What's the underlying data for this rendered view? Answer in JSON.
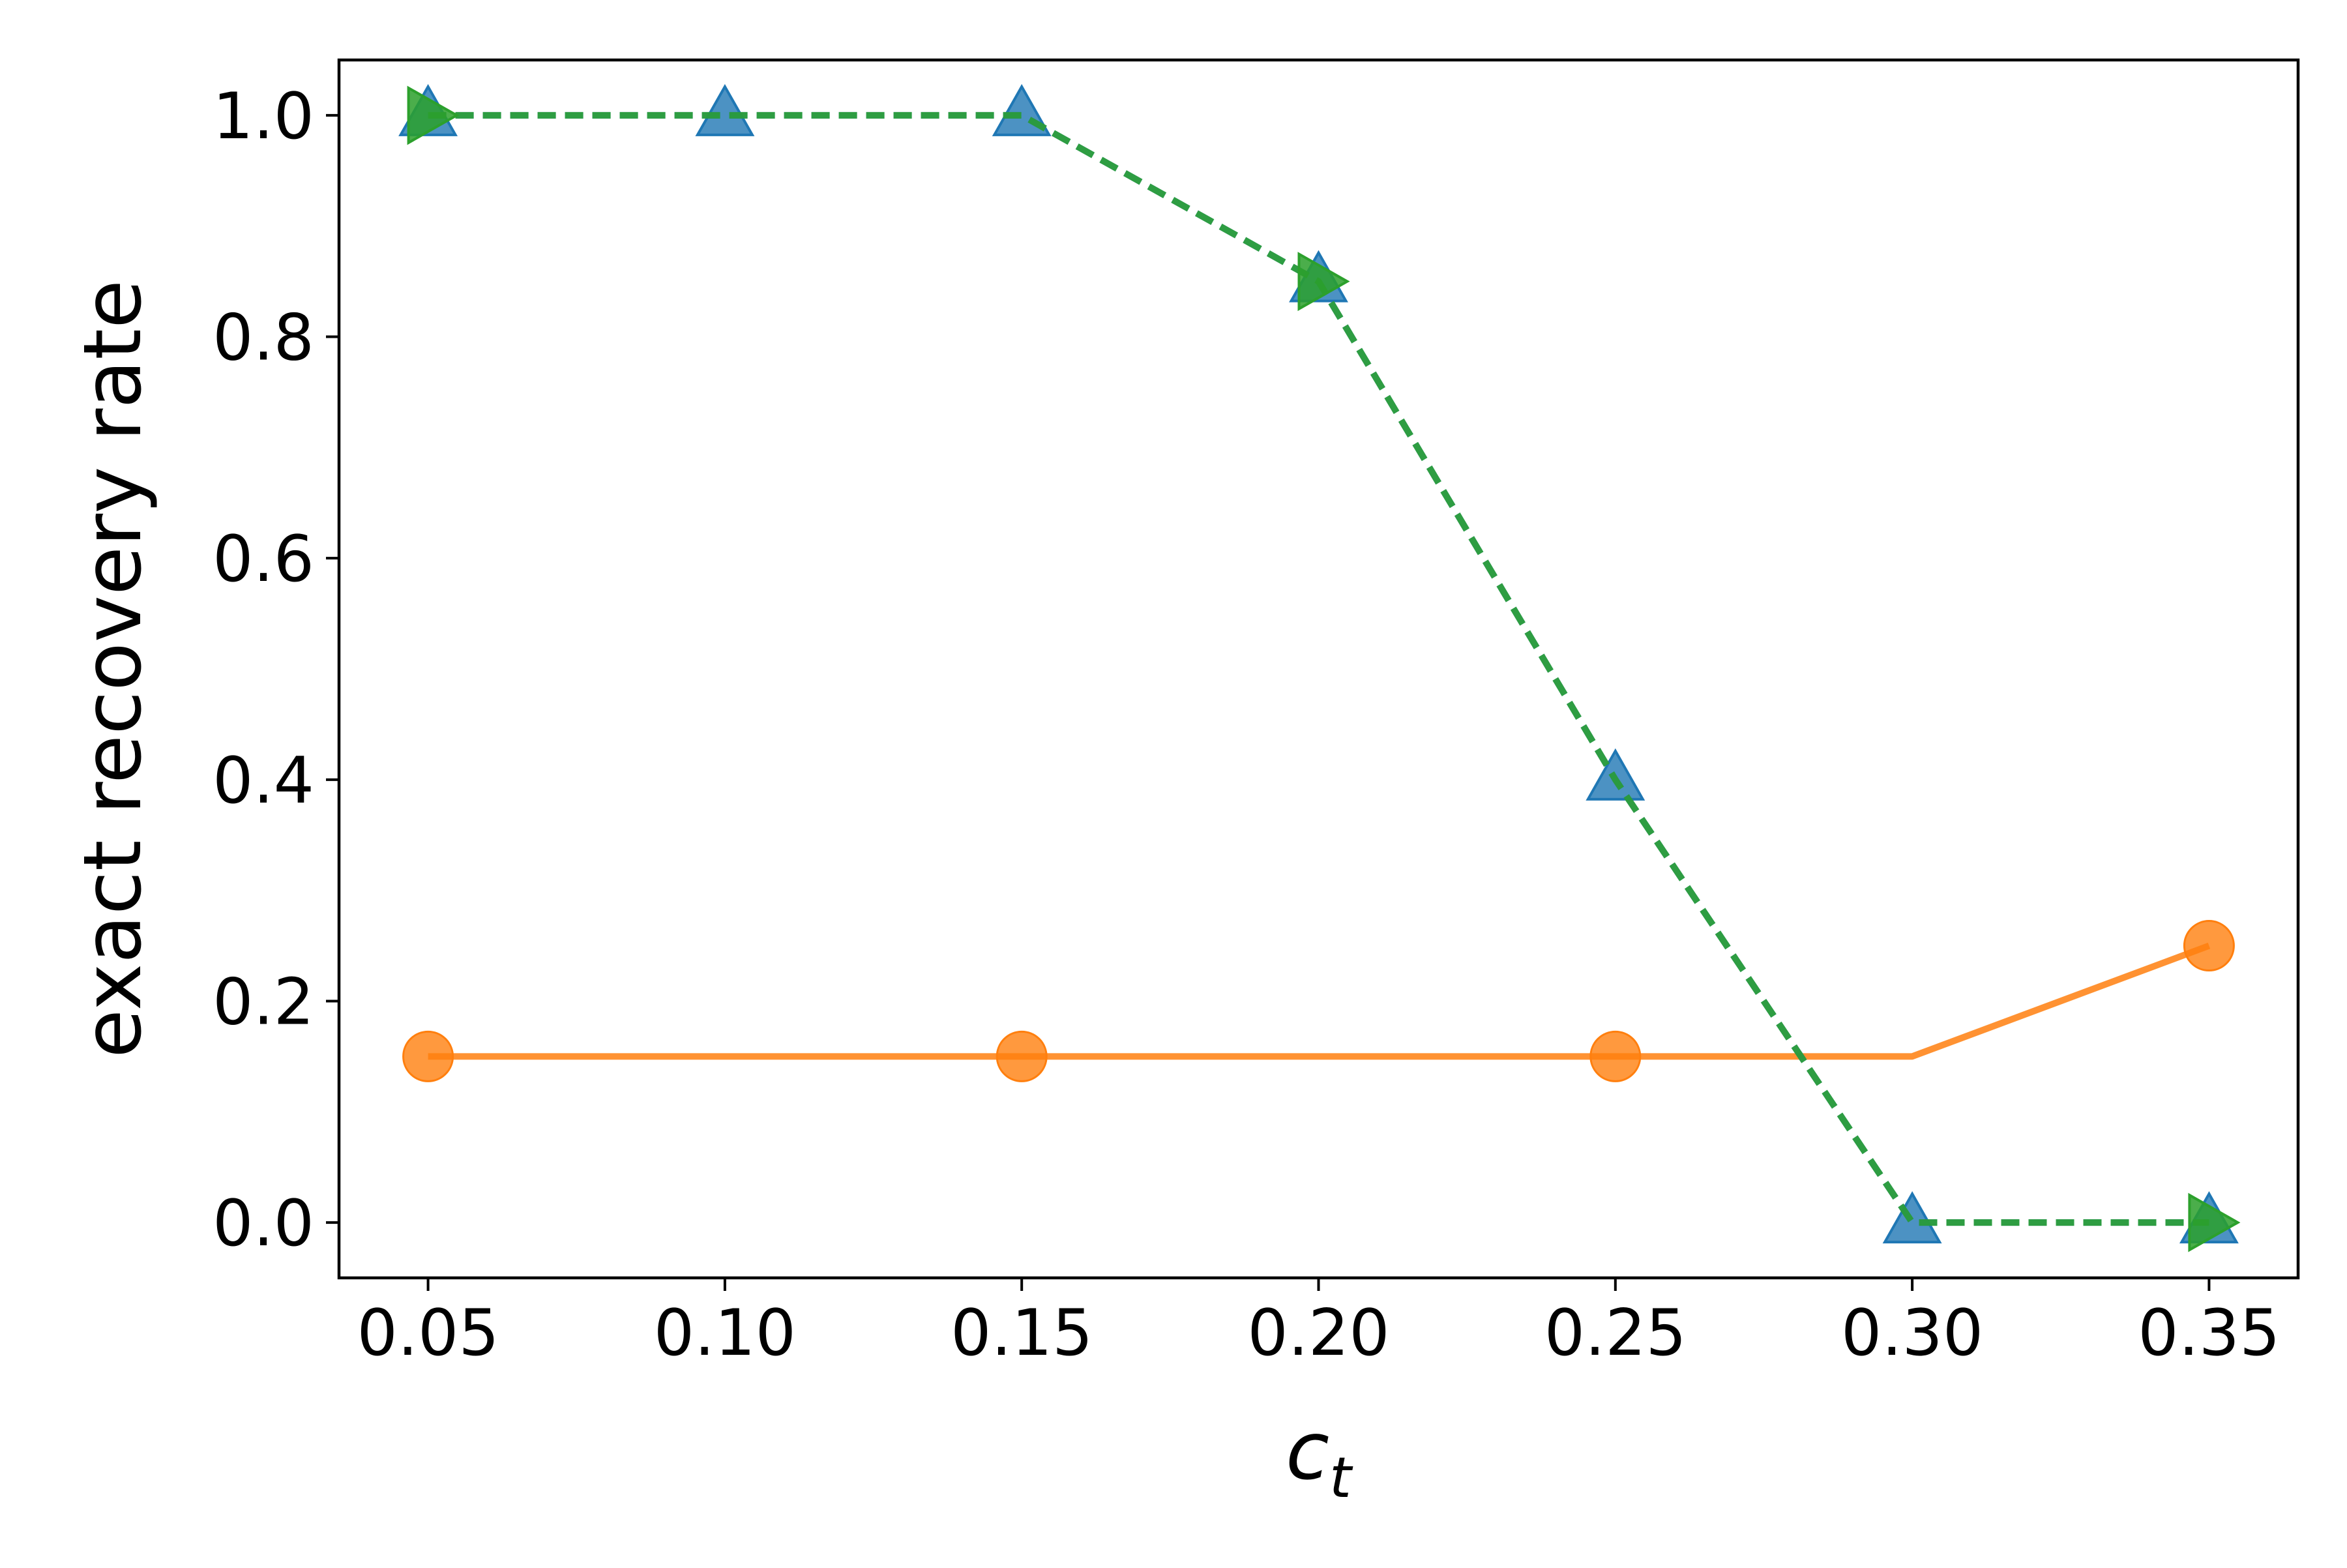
{
  "chart_data": {
    "type": "line",
    "title": "",
    "xlabel": "c",
    "xlabel_subscript": "t",
    "ylabel": "exact recovery rate",
    "xlim": [
      0.035,
      0.365
    ],
    "ylim": [
      -0.05,
      1.05
    ],
    "x_ticks": [
      0.05,
      0.1,
      0.15,
      0.2,
      0.25,
      0.3,
      0.35
    ],
    "x_tick_labels": [
      "0.05",
      "0.10",
      "0.15",
      "0.20",
      "0.25",
      "0.30",
      "0.35"
    ],
    "y_ticks": [
      0.0,
      0.2,
      0.4,
      0.6,
      0.8,
      1.0
    ],
    "y_tick_labels": [
      "0.0",
      "0.2",
      "0.4",
      "0.6",
      "0.8",
      "1.0"
    ],
    "grid": false,
    "legend": "none",
    "series": [
      {
        "color": "#1f77b4",
        "line_style": "dashed",
        "marker": "triangle-up",
        "x": [
          0.05,
          0.1,
          0.15,
          0.2,
          0.25,
          0.3,
          0.35
        ],
        "y": [
          1.0,
          1.0,
          1.0,
          0.85,
          0.4,
          0.0,
          0.0
        ],
        "marker_x": [
          0.05,
          0.1,
          0.15,
          0.2,
          0.25,
          0.3,
          0.35
        ],
        "marker_y": [
          1.0,
          1.0,
          1.0,
          0.85,
          0.4,
          0.0,
          0.0
        ]
      },
      {
        "color": "#ff7f0e",
        "line_style": "solid",
        "marker": "circle",
        "x": [
          0.05,
          0.1,
          0.15,
          0.2,
          0.25,
          0.3,
          0.35
        ],
        "y": [
          0.15,
          0.15,
          0.15,
          0.15,
          0.15,
          0.15,
          0.25
        ],
        "marker_x": [
          0.05,
          0.15,
          0.25,
          0.35
        ],
        "marker_y": [
          0.15,
          0.15,
          0.15,
          0.25
        ]
      },
      {
        "color": "#2ca02c",
        "line_style": "dashed",
        "marker": "triangle-right",
        "x": [
          0.05,
          0.1,
          0.15,
          0.2,
          0.25,
          0.3,
          0.35
        ],
        "y": [
          1.0,
          1.0,
          1.0,
          0.85,
          0.4,
          0.0,
          0.0
        ],
        "marker_x": [
          0.05,
          0.2,
          0.35
        ],
        "marker_y": [
          1.0,
          0.85,
          0.0
        ]
      }
    ]
  }
}
